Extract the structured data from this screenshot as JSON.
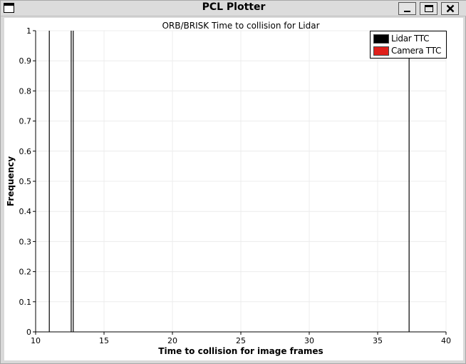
{
  "window": {
    "title": "PCL Plotter"
  },
  "controls": {
    "minimize": "minimize",
    "maximize": "maximize",
    "close": "close"
  },
  "legend": [
    {
      "label": "Lidar TTC",
      "color": "#000000"
    },
    {
      "label": "Camera TTC",
      "color": "#e0201b"
    }
  ],
  "chart_data": {
    "type": "bar",
    "title": "ORB/BRISK Time to collision for Lidar",
    "xlabel": "Time to collision for image frames",
    "ylabel": "Frequency",
    "xlim": [
      10,
      40
    ],
    "ylim": [
      0,
      1
    ],
    "x_ticks": [
      "10",
      "15",
      "20",
      "25",
      "30",
      "35",
      "40"
    ],
    "y_ticks": [
      "0",
      "0.1",
      "0.2",
      "0.3",
      "0.4",
      "0.5",
      "0.6",
      "0.7",
      "0.8",
      "0.9",
      "1"
    ],
    "grid": true,
    "legend_position": "top-right",
    "series": [
      {
        "name": "Lidar TTC",
        "color": "#000000",
        "x": [
          11.0,
          12.6,
          12.75,
          37.3
        ],
        "values": [
          1,
          1,
          1,
          1
        ]
      },
      {
        "name": "Camera TTC",
        "color": "#e0201b",
        "x": [],
        "values": []
      }
    ]
  }
}
